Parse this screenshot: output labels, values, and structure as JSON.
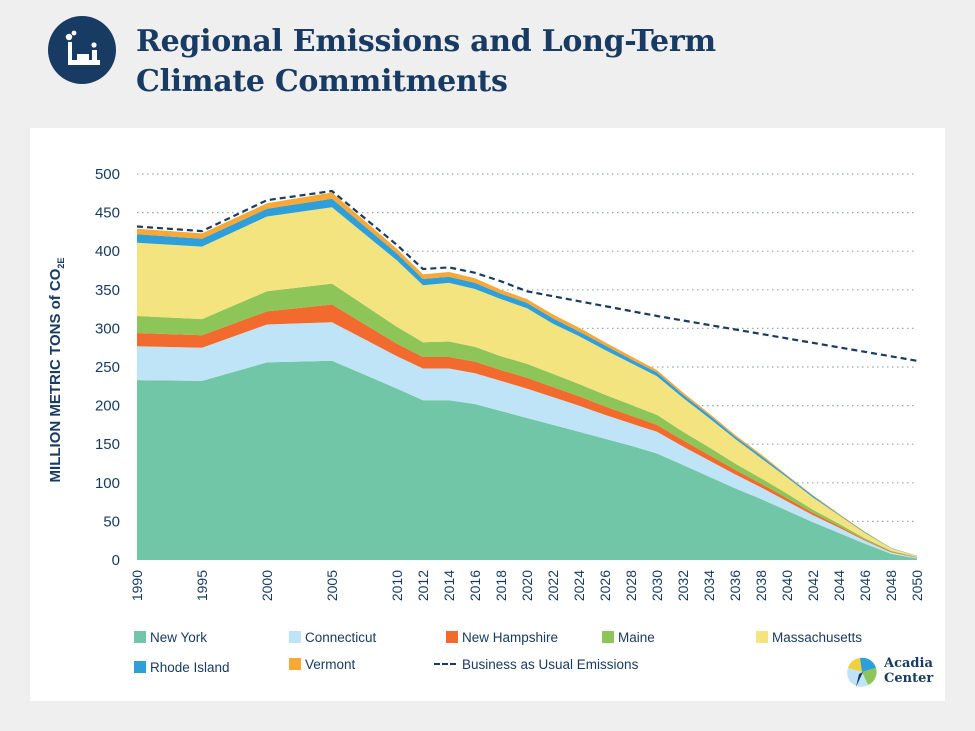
{
  "header": {
    "icon": "factory-icon",
    "title_line1": "Regional Emissions and Long-Term",
    "title_line2": "Climate Commitments"
  },
  "logo": {
    "line1": "Acadia",
    "line2": "Center"
  },
  "chart_data": {
    "type": "area",
    "stacked": true,
    "ylabel": "MILLION METRIC TONS of CO2E",
    "ylim": [
      0,
      500
    ],
    "yticks": [
      0,
      50,
      100,
      150,
      200,
      250,
      300,
      350,
      400,
      450,
      500
    ],
    "grid": "horizontal dotted",
    "legend_position": "bottom",
    "x": [
      1990,
      1995,
      2000,
      2005,
      2010,
      2012,
      2014,
      2016,
      2018,
      2020,
      2022,
      2024,
      2026,
      2028,
      2030,
      2032,
      2034,
      2036,
      2038,
      2040,
      2042,
      2044,
      2046,
      2048,
      2050
    ],
    "series": [
      {
        "name": "New York",
        "color": "#70c6a6",
        "values": [
          233,
          232,
          256,
          258,
          222,
          207,
          207,
          202,
          193,
          184,
          175,
          166,
          157,
          148,
          138,
          123,
          108,
          93,
          79,
          64,
          49,
          35,
          21,
          8,
          2
        ]
      },
      {
        "name": "Connecticut",
        "color": "#bfe4f7",
        "values": [
          44,
          43,
          49,
          50,
          42,
          41,
          41,
          40,
          39,
          38,
          36,
          34,
          31,
          29,
          28,
          24,
          21,
          18,
          15,
          12,
          9,
          7,
          4,
          2,
          1
        ]
      },
      {
        "name": "New Hampshire",
        "color": "#f26a2e",
        "values": [
          17,
          16,
          17,
          23,
          16,
          15,
          15,
          15,
          14,
          14,
          13,
          12,
          11,
          10,
          9,
          8,
          7,
          6,
          5,
          4,
          3,
          2,
          1,
          1,
          0.5
        ]
      },
      {
        "name": "Maine",
        "color": "#8dc559",
        "values": [
          22,
          21,
          26,
          27,
          22,
          19,
          20,
          19,
          18,
          18,
          17,
          16,
          15,
          14,
          13,
          11,
          10,
          8,
          7,
          6,
          4,
          3,
          2,
          1,
          0.5
        ]
      },
      {
        "name": "Massachusetts",
        "color": "#f4e47f",
        "values": [
          95,
          94,
          97,
          99,
          86,
          74,
          76,
          75,
          74,
          72,
          65,
          62,
          58,
          54,
          50,
          44,
          38,
          32,
          26,
          21,
          16,
          11,
          7,
          3,
          1
        ]
      },
      {
        "name": "Rhode Island",
        "color": "#2e9fd9",
        "values": [
          11,
          10,
          10,
          11,
          9,
          8,
          8,
          8,
          7,
          7,
          7,
          6,
          6,
          5,
          5,
          4,
          4,
          3,
          3,
          2,
          2,
          1,
          1,
          0.5,
          0.3
        ]
      },
      {
        "name": "Vermont",
        "color": "#f7a837",
        "values": [
          7,
          7,
          7,
          8,
          6,
          6,
          6,
          6,
          5,
          5,
          5,
          5,
          4,
          4,
          3,
          3,
          2,
          2,
          2,
          1,
          1,
          1,
          0.5,
          0.3,
          0.2
        ]
      }
    ],
    "reference_line": {
      "name": "Business as Usual Emissions",
      "color": "#183b63",
      "style": "dashed",
      "x": [
        1990,
        1995,
        2000,
        2005,
        2010,
        2012,
        2014,
        2016,
        2018,
        2020,
        2030,
        2050
      ],
      "values": [
        432,
        426,
        466,
        478,
        408,
        377,
        379,
        372,
        361,
        348,
        316,
        258
      ]
    }
  }
}
